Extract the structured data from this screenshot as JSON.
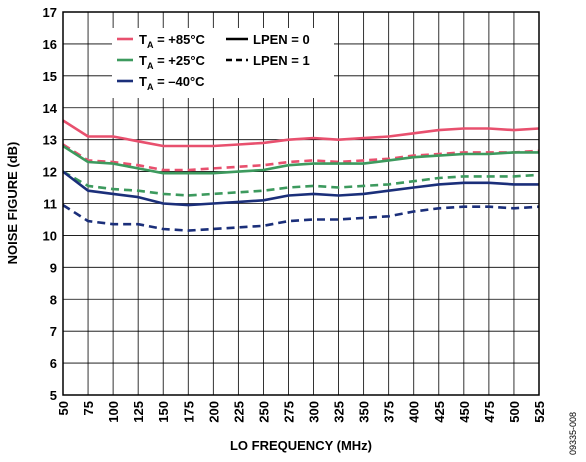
{
  "figure_id": "09335-008",
  "chart_data": {
    "type": "line",
    "xlabel": "LO FREQUENCY (MHz)",
    "ylabel": "NOISE FIGURE (dB)",
    "xlim": [
      50,
      525
    ],
    "ylim": [
      5,
      17
    ],
    "x_ticks": [
      50,
      75,
      100,
      125,
      150,
      175,
      200,
      225,
      250,
      275,
      300,
      325,
      350,
      375,
      400,
      425,
      450,
      475,
      500,
      525
    ],
    "y_ticks": [
      5,
      6,
      7,
      8,
      9,
      10,
      11,
      12,
      13,
      14,
      15,
      16,
      17
    ],
    "grid": true,
    "legend_position": "top-left",
    "legend": {
      "temperatures": [
        {
          "label_main": "T",
          "label_sub": "A",
          "label_rest": " = +85°C",
          "color": "#e8506e"
        },
        {
          "label_main": "T",
          "label_sub": "A",
          "label_rest": " = +25°C",
          "color": "#3d9a5e"
        },
        {
          "label_main": "T",
          "label_sub": "A",
          "label_rest": " = –40°C",
          "color": "#1b2f7a"
        }
      ],
      "modes": [
        {
          "label": "LPEN = 0",
          "dash": "solid"
        },
        {
          "label": "LPEN = 1",
          "dash": "dashed"
        }
      ]
    },
    "x": [
      50,
      75,
      100,
      125,
      150,
      175,
      200,
      225,
      250,
      275,
      300,
      325,
      350,
      375,
      400,
      425,
      450,
      475,
      500,
      525
    ],
    "series": [
      {
        "temp": "+85°C",
        "lpen": 0,
        "color": "#e8506e",
        "dash": "solid",
        "values": [
          13.6,
          13.1,
          13.1,
          12.95,
          12.8,
          12.8,
          12.8,
          12.85,
          12.9,
          13.0,
          13.05,
          13.0,
          13.05,
          13.1,
          13.2,
          13.3,
          13.35,
          13.35,
          13.3,
          13.35
        ]
      },
      {
        "temp": "+85°C",
        "lpen": 1,
        "color": "#e8506e",
        "dash": "dashed",
        "values": [
          12.85,
          12.35,
          12.3,
          12.2,
          12.05,
          12.05,
          12.1,
          12.15,
          12.2,
          12.3,
          12.35,
          12.3,
          12.35,
          12.4,
          12.5,
          12.55,
          12.6,
          12.6,
          12.6,
          12.65
        ]
      },
      {
        "temp": "+25°C",
        "lpen": 0,
        "color": "#3d9a5e",
        "dash": "solid",
        "values": [
          12.8,
          12.3,
          12.25,
          12.1,
          11.95,
          11.95,
          11.95,
          12.0,
          12.05,
          12.2,
          12.25,
          12.25,
          12.25,
          12.35,
          12.45,
          12.5,
          12.55,
          12.55,
          12.6,
          12.6
        ]
      },
      {
        "temp": "+25°C",
        "lpen": 1,
        "color": "#3d9a5e",
        "dash": "dashed",
        "values": [
          12.0,
          11.55,
          11.45,
          11.4,
          11.3,
          11.25,
          11.3,
          11.35,
          11.4,
          11.5,
          11.55,
          11.5,
          11.55,
          11.6,
          11.7,
          11.8,
          11.85,
          11.85,
          11.85,
          11.9
        ]
      },
      {
        "temp": "–40°C",
        "lpen": 0,
        "color": "#1b2f7a",
        "dash": "solid",
        "values": [
          12.0,
          11.4,
          11.3,
          11.2,
          11.0,
          10.95,
          11.0,
          11.05,
          11.1,
          11.25,
          11.3,
          11.25,
          11.3,
          11.4,
          11.5,
          11.6,
          11.65,
          11.65,
          11.6,
          11.6
        ]
      },
      {
        "temp": "–40°C",
        "lpen": 1,
        "color": "#1b2f7a",
        "dash": "dashed",
        "values": [
          10.95,
          10.45,
          10.35,
          10.35,
          10.2,
          10.15,
          10.2,
          10.25,
          10.3,
          10.45,
          10.5,
          10.5,
          10.55,
          10.6,
          10.75,
          10.85,
          10.9,
          10.9,
          10.85,
          10.9
        ]
      }
    ]
  }
}
